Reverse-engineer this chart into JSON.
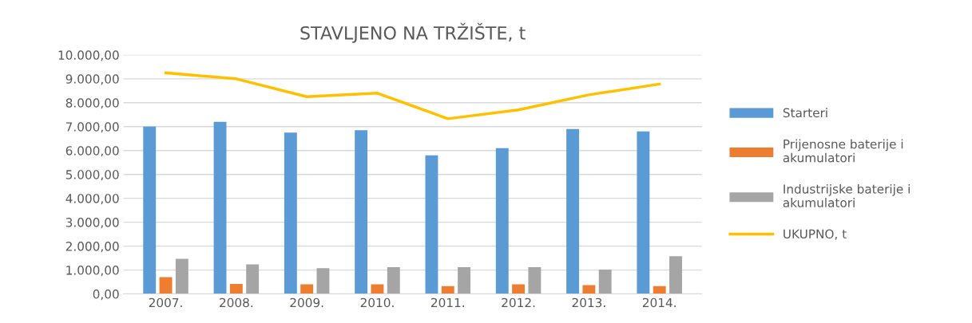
{
  "chart_data": {
    "type": "bar",
    "title": "STAVLJENO NA TRŽIŠTE, t",
    "categories": [
      "2007.",
      "2008.",
      "2009.",
      "2010.",
      "2011.",
      "2012.",
      "2013.",
      "2014."
    ],
    "series": [
      {
        "name": "Starteri",
        "color": "#5b9bd5",
        "values": [
          7000,
          7200,
          6750,
          6850,
          5800,
          6100,
          6900,
          6800
        ]
      },
      {
        "name": "Prijenosne baterije i akumulatori",
        "color": "#ed7d31",
        "values": [
          700,
          420,
          400,
          400,
          330,
          400,
          370,
          330
        ]
      },
      {
        "name": "Industrijske baterije i akumulatori",
        "color": "#a5a5a5",
        "values": [
          1470,
          1240,
          1080,
          1120,
          1120,
          1120,
          1020,
          1580
        ]
      },
      {
        "name": "UKUPNO, t",
        "type": "line",
        "color": "#ffc000",
        "values": [
          9250,
          9000,
          8250,
          8400,
          7330,
          7700,
          8330,
          8780
        ]
      }
    ],
    "ylim": [
      0,
      10000
    ],
    "yticks": [
      {
        "value": 0,
        "label": "0,00"
      },
      {
        "value": 1000,
        "label": "1.000,00"
      },
      {
        "value": 2000,
        "label": "2.000,00"
      },
      {
        "value": 3000,
        "label": "3.000,00"
      },
      {
        "value": 4000,
        "label": "4.000,00"
      },
      {
        "value": 5000,
        "label": "5.000,00"
      },
      {
        "value": 6000,
        "label": "6.000,00"
      },
      {
        "value": 7000,
        "label": "7.000,00"
      },
      {
        "value": 8000,
        "label": "8.000,00"
      },
      {
        "value": 9000,
        "label": "9.000,00"
      },
      {
        "value": 10000,
        "label": "10.000,00"
      }
    ],
    "grid": "y",
    "legend": "right",
    "marker": "none"
  }
}
